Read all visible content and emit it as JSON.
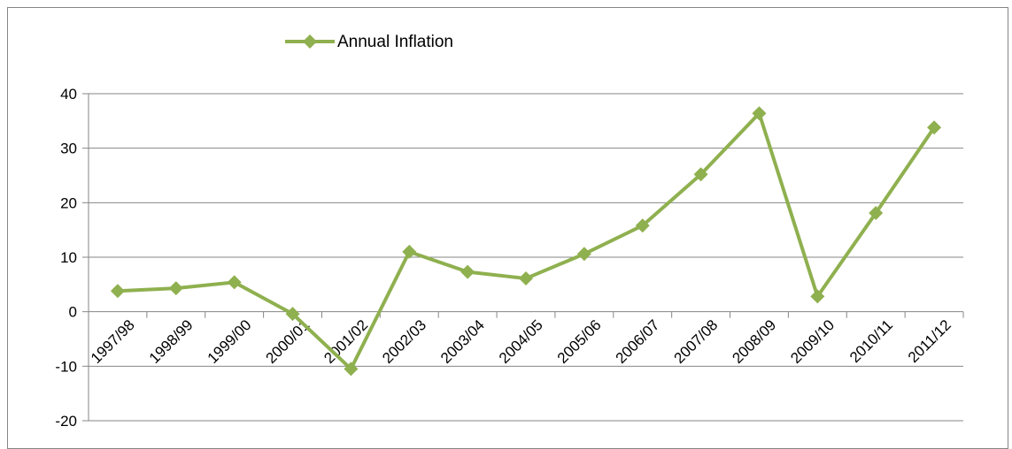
{
  "chart_data": {
    "type": "line",
    "categories": [
      "1997/98",
      "1998/99",
      "1999/00",
      "2000/01",
      "2001/02",
      "2002/03",
      "2003/04",
      "2004/05",
      "2005/06",
      "2006/07",
      "2007/08",
      "2008/09",
      "2009/10",
      "2010/11",
      "2011/12"
    ],
    "series": [
      {
        "name": "Annual Inflation",
        "color": "#8FB04F",
        "values": [
          3.8,
          4.3,
          5.4,
          -0.4,
          -10.5,
          11.0,
          7.3,
          6.1,
          10.6,
          15.8,
          25.2,
          36.4,
          2.8,
          18.1,
          33.8
        ]
      }
    ],
    "y_ticks": [
      "40",
      "30",
      "20",
      "10",
      "0",
      "-10",
      "-20"
    ],
    "ylim": [
      -20,
      40
    ],
    "grid": true,
    "legend_position": "top"
  }
}
